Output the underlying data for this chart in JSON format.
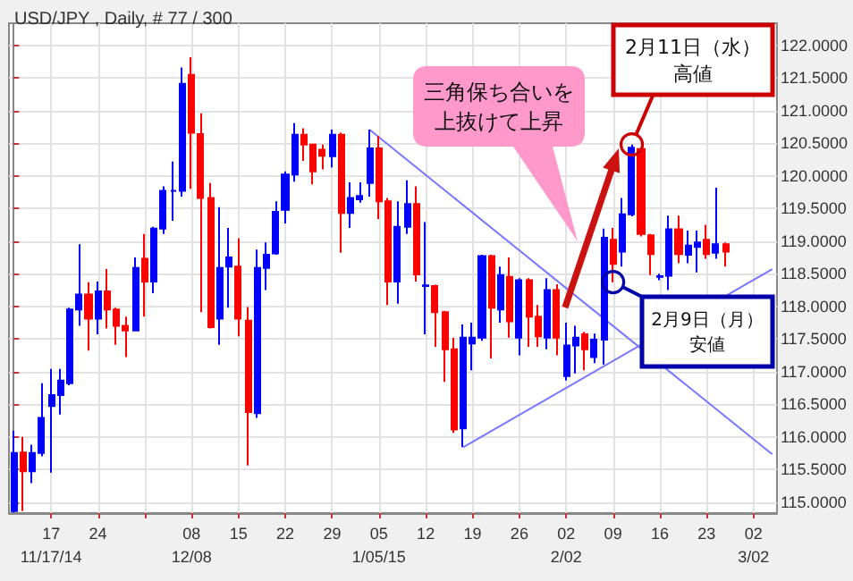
{
  "chart_data": {
    "type": "candlestick",
    "title": "USD/JPY , Daily, # 77 / 300",
    "categories": [
      null,
      null,
      null,
      null,
      "17\n11/17/14",
      null,
      null,
      null,
      null,
      "24",
      null,
      null,
      null,
      null,
      null,
      null,
      null,
      null,
      null,
      "08\n12/08",
      null,
      null,
      null,
      null,
      "15",
      null,
      null,
      null,
      null,
      "22",
      null,
      null,
      null,
      null,
      "29",
      null,
      null,
      null,
      null,
      "05\n1/05/15",
      null,
      null,
      null,
      null,
      "12",
      null,
      null,
      null,
      null,
      "19",
      null,
      null,
      null,
      null,
      "26",
      null,
      null,
      null,
      null,
      "02\n2/02",
      null,
      null,
      null,
      null,
      "09",
      null,
      null,
      null,
      null,
      "16",
      null,
      null,
      null,
      null,
      "23",
      null,
      null,
      null,
      null,
      "02\n3/02",
      null,
      null
    ],
    "ohlc": [
      [
        114.86,
        116.09,
        114.84,
        115.75
      ],
      [
        115.76,
        116.0,
        114.86,
        115.47
      ],
      [
        115.47,
        115.88,
        115.29,
        115.75
      ],
      [
        115.75,
        116.82,
        115.7,
        116.29
      ],
      [
        116.47,
        117.04,
        115.45,
        116.64
      ],
      [
        116.64,
        117.04,
        116.34,
        116.86
      ],
      [
        116.82,
        117.98,
        116.79,
        117.95
      ],
      [
        117.95,
        118.95,
        117.7,
        118.18
      ],
      [
        118.18,
        118.37,
        117.32,
        117.81
      ],
      [
        117.81,
        118.38,
        117.57,
        118.23
      ],
      [
        118.23,
        118.57,
        117.66,
        117.95
      ],
      [
        117.95,
        117.98,
        117.41,
        117.7
      ],
      [
        117.7,
        117.84,
        117.22,
        117.63
      ],
      [
        117.63,
        118.75,
        117.63,
        118.59
      ],
      [
        118.73,
        119.11,
        117.84,
        118.38
      ],
      [
        118.38,
        119.22,
        118.2,
        119.19
      ],
      [
        119.19,
        119.84,
        119.11,
        119.77
      ],
      [
        119.77,
        120.22,
        119.31,
        119.77
      ],
      [
        119.77,
        121.66,
        119.68,
        121.41
      ],
      [
        121.55,
        121.82,
        119.8,
        120.66
      ],
      [
        120.64,
        120.96,
        117.91,
        119.66
      ],
      [
        119.66,
        119.89,
        117.66,
        117.68
      ],
      [
        117.81,
        119.52,
        117.41,
        118.59
      ],
      [
        118.61,
        119.2,
        117.98,
        118.75
      ],
      [
        118.61,
        119.04,
        117.54,
        117.81
      ],
      [
        117.78,
        117.99,
        115.56,
        116.38
      ],
      [
        116.36,
        118.87,
        116.29,
        118.59
      ],
      [
        118.59,
        118.98,
        118.25,
        118.79
      ],
      [
        118.81,
        119.61,
        118.79,
        119.45
      ],
      [
        119.48,
        120.07,
        119.27,
        120.02
      ],
      [
        120.02,
        120.81,
        119.91,
        120.63
      ],
      [
        120.63,
        120.73,
        120.23,
        120.48
      ],
      [
        120.48,
        120.48,
        119.87,
        120.07
      ],
      [
        120.4,
        120.48,
        120.1,
        120.31
      ],
      [
        120.3,
        120.71,
        120.13,
        120.63
      ],
      [
        120.63,
        120.66,
        118.82,
        119.43
      ],
      [
        119.43,
        119.9,
        119.2,
        119.66
      ],
      [
        119.64,
        119.9,
        119.59,
        119.69
      ],
      [
        119.89,
        120.71,
        119.68,
        120.42
      ],
      [
        120.42,
        120.61,
        119.34,
        119.61
      ],
      [
        119.61,
        119.66,
        118.02,
        118.38
      ],
      [
        118.38,
        119.61,
        118.04,
        119.22
      ],
      [
        119.22,
        119.93,
        119.11,
        119.57
      ],
      [
        119.57,
        119.84,
        118.38,
        118.49
      ],
      [
        118.31,
        119.29,
        117.57,
        118.32
      ],
      [
        118.31,
        118.33,
        117.38,
        117.91
      ],
      [
        117.91,
        117.93,
        116.84,
        117.34
      ],
      [
        117.34,
        117.52,
        116.06,
        116.11
      ],
      [
        116.13,
        117.72,
        115.84,
        117.52
      ],
      [
        117.43,
        117.75,
        117.02,
        117.52
      ],
      [
        117.52,
        118.79,
        117.47,
        118.77
      ],
      [
        118.77,
        118.79,
        117.2,
        117.98
      ],
      [
        117.95,
        118.61,
        117.75,
        118.48
      ],
      [
        118.45,
        118.75,
        117.52,
        117.77
      ],
      [
        117.52,
        118.43,
        117.25,
        118.4
      ],
      [
        118.4,
        118.43,
        117.38,
        117.84
      ],
      [
        117.84,
        118.02,
        117.38,
        117.54
      ],
      [
        117.52,
        118.43,
        117.34,
        118.25
      ],
      [
        118.25,
        118.34,
        117.25,
        117.52
      ],
      [
        116.93,
        117.75,
        116.86,
        117.4
      ],
      [
        117.4,
        117.7,
        116.97,
        117.52
      ],
      [
        117.57,
        117.61,
        117.02,
        117.34
      ],
      [
        117.22,
        117.58,
        117.13,
        117.49
      ],
      [
        117.49,
        119.19,
        117.11,
        119.05
      ],
      [
        119.02,
        119.2,
        118.37,
        118.65
      ],
      [
        118.84,
        119.66,
        118.61,
        119.41
      ],
      [
        119.41,
        120.48,
        119.38,
        120.43
      ],
      [
        120.41,
        120.43,
        119.07,
        119.11
      ],
      [
        119.09,
        119.11,
        118.48,
        118.8
      ],
      [
        118.45,
        118.5,
        118.4,
        118.46
      ],
      [
        118.47,
        119.39,
        118.25,
        119.18
      ],
      [
        119.18,
        119.39,
        118.66,
        118.8
      ],
      [
        118.79,
        119.16,
        118.66,
        118.93
      ],
      [
        118.91,
        119.16,
        118.52,
        118.98
      ],
      [
        119.02,
        119.25,
        118.73,
        118.8
      ],
      [
        118.82,
        119.82,
        118.73,
        118.95
      ],
      [
        118.95,
        118.98,
        118.61,
        118.84
      ],
      null,
      null,
      null,
      null,
      null
    ],
    "colors": [
      "#0000ff",
      "#ff0000",
      "#0000ff",
      "#0000ff",
      "#0000ff",
      "#0000ff",
      "#0000ff",
      "#0000ff",
      "#ff0000",
      "#0000ff",
      "#ff0000",
      "#ff0000",
      "#ff0000",
      "#0000ff",
      "#ff0000",
      "#0000ff",
      "#0000ff",
      "#0000ff",
      "#0000ff",
      "#ff0000",
      "#ff0000",
      "#ff0000",
      "#0000ff",
      "#0000ff",
      "#ff0000",
      "#ff0000",
      "#0000ff",
      "#0000ff",
      "#0000ff",
      "#0000ff",
      "#0000ff",
      "#ff0000",
      "#ff0000",
      "#ff0000",
      "#0000ff",
      "#ff0000",
      "#0000ff",
      "#0000ff",
      "#0000ff",
      "#ff0000",
      "#ff0000",
      "#0000ff",
      "#0000ff",
      "#ff0000",
      "#0000ff",
      "#ff0000",
      "#ff0000",
      "#ff0000",
      "#0000ff",
      "#0000ff",
      "#0000ff",
      "#ff0000",
      "#0000ff",
      "#ff0000",
      "#0000ff",
      "#ff0000",
      "#ff0000",
      "#0000ff",
      "#ff0000",
      "#0000ff",
      "#0000ff",
      "#ff0000",
      "#0000ff",
      "#0000ff",
      "#ff0000",
      "#0000ff",
      "#0000ff",
      "#ff0000",
      "#ff0000",
      "#0000ff",
      "#0000ff",
      "#ff0000",
      "#0000ff",
      "#0000ff",
      "#ff0000",
      "#0000ff",
      "#ff0000",
      null,
      null,
      null,
      null,
      null
    ],
    "series": [
      {
        "type": "line",
        "color": "#7777ff",
        "values": [
          null,
          null,
          null,
          null,
          null,
          null,
          null,
          null,
          null,
          null,
          null,
          null,
          null,
          null,
          null,
          null,
          null,
          null,
          null,
          null,
          null,
          null,
          null,
          null,
          null,
          null,
          null,
          null,
          null,
          null,
          null,
          null,
          null,
          null,
          null,
          null,
          null,
          null,
          120.71,
          null,
          null,
          null,
          null,
          null,
          null,
          null,
          null,
          null,
          null,
          null,
          null,
          null,
          null,
          null,
          null,
          null,
          null,
          null,
          null,
          null,
          null,
          null,
          null,
          null,
          null,
          null,
          null,
          null,
          null,
          null,
          null,
          null,
          null,
          null,
          null,
          null,
          null,
          null,
          null,
          null,
          null,
          115.73
        ]
      },
      {
        "type": "line",
        "color": "#7777ff",
        "values": [
          null,
          null,
          null,
          null,
          null,
          null,
          null,
          null,
          null,
          null,
          null,
          null,
          null,
          null,
          null,
          null,
          null,
          null,
          null,
          null,
          null,
          null,
          null,
          null,
          null,
          null,
          null,
          null,
          null,
          null,
          null,
          null,
          null,
          null,
          null,
          null,
          null,
          null,
          null,
          null,
          null,
          null,
          null,
          null,
          null,
          null,
          null,
          null,
          115.84,
          null,
          null,
          null,
          null,
          null,
          null,
          null,
          null,
          null,
          null,
          null,
          null,
          null,
          null,
          null,
          null,
          null,
          null,
          null,
          null,
          null,
          null,
          null,
          null,
          null,
          null,
          null,
          null,
          null,
          null,
          null,
          null,
          118.57
        ]
      }
    ],
    "ylim": [
      114.83,
      122.34
    ],
    "yticks": [
      {
        "value": 115,
        "label": "115.0000"
      },
      {
        "value": 115.5,
        "label": "115.5000"
      },
      {
        "value": 116,
        "label": "116.0000"
      },
      {
        "value": 116.5,
        "label": "116.5000"
      },
      {
        "value": 117,
        "label": "117.0000"
      },
      {
        "value": 117.5,
        "label": "117.5000"
      },
      {
        "value": 118,
        "label": "118.0000"
      },
      {
        "value": 118.5,
        "label": "118.5000"
      },
      {
        "value": 119,
        "label": "119.0000"
      },
      {
        "value": 119.5,
        "label": "119.5000"
      },
      {
        "value": 120,
        "label": "120.0000"
      },
      {
        "value": 120.5,
        "label": "120.5000"
      },
      {
        "value": 121,
        "label": "121.0000"
      },
      {
        "value": 121.5,
        "label": "121.5000"
      },
      {
        "value": 122,
        "label": "122.0000"
      }
    ],
    "grid": true,
    "annotations": [
      "三角保ち合いを上抜けて上昇",
      "2月11日（水）高値",
      "2月9日（月）安値"
    ]
  }
}
